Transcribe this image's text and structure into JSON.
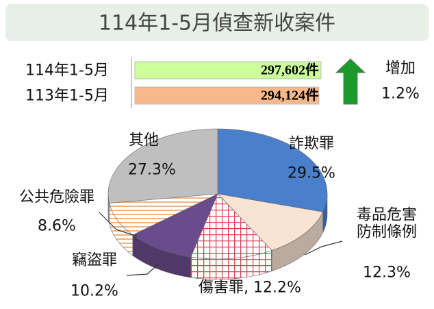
{
  "title": "114年1-5月偵查新收案件",
  "chart_data": [
    {
      "type": "bar",
      "orientation": "horizontal",
      "categories": [
        "114年1-5月",
        "113年1-5月"
      ],
      "values": [
        297602,
        294124
      ],
      "value_labels": [
        "297,602件",
        "294,124件"
      ],
      "colors": [
        "#ccff99",
        "#f8b98a"
      ],
      "annotations": [
        "增加",
        "1.2%"
      ]
    },
    {
      "type": "pie",
      "categories": [
        "詐欺罪",
        "毒品危害防制條例",
        "傷害罪",
        "竊盜罪",
        "公共危險罪",
        "其他"
      ],
      "values": [
        29.5,
        12.3,
        12.2,
        10.2,
        8.6,
        27.3
      ],
      "value_labels": [
        "29.5%",
        "12.3%",
        ", 12.2%",
        "10.2%",
        "8.6%",
        "27.3%"
      ],
      "colors": [
        "#4a7fcc",
        "#f9e4d4",
        "#e04050",
        "#6a4b8c",
        "#f0a060",
        "#bfbfbf"
      ],
      "patterns": [
        null,
        null,
        "grid",
        null,
        "stripes",
        null
      ]
    }
  ]
}
